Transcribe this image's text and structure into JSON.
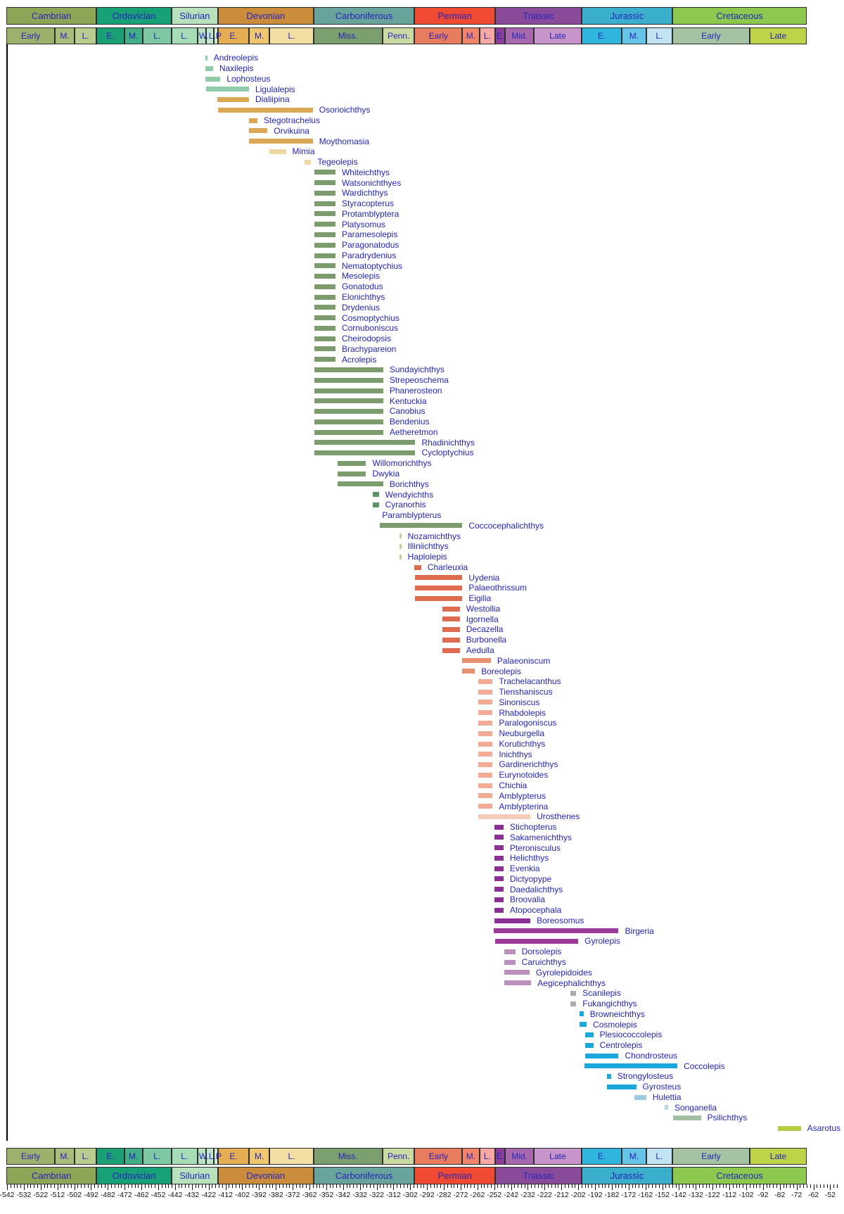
{
  "chart_data": {
    "type": "bar",
    "subtype": "taxon-temporal-range-chart",
    "description": "Temporal ranges of palaeonisciform fish genera against the geologic timescale, Cambrian to Cretaceous",
    "time_axis": {
      "left_ma": -542,
      "right_ma": -48,
      "tick_label_step": 10,
      "minor_tick_step": 2,
      "tick_labels": [
        "-542",
        "-532",
        "-522",
        "-512",
        "-502",
        "-492",
        "-482",
        "-472",
        "-462",
        "-452",
        "-442",
        "-432",
        "-422",
        "-412",
        "-402",
        "-392",
        "-382",
        "-372",
        "-362",
        "-352",
        "-342",
        "-332",
        "-322",
        "-312",
        "-302",
        "-292",
        "-282",
        "-272",
        "-262",
        "-252",
        "-242",
        "-232",
        "-222",
        "-212",
        "-202",
        "-192",
        "-182",
        "-172",
        "-162",
        "-152",
        "-142",
        "-132",
        "-122",
        "-112",
        "-102",
        "-92",
        "-82",
        "-72",
        "-62",
        "-52"
      ]
    },
    "palette": {
      "sil": "#8FCBA8",
      "dev": "#DBA855",
      "devL": "#EDD9A2",
      "carb": "#7C9C6E",
      "carbD": "#5E9466",
      "carbT": "#C8CC9D",
      "none": "transparent",
      "perm": "#DE6A50",
      "permM": "#E89070",
      "permL": "#F2AC96",
      "permLL": "#F7CBB9",
      "triE": "#8C3194",
      "tri": "#9C3A9C",
      "triM": "#BC8FBC",
      "triG": "#ACACAC",
      "jur": "#1BA7DB",
      "jurL": "#9FCBE0",
      "jurLL": "#B5D9E8",
      "cretE": "#A3BFA3",
      "cretL": "#B9CC45"
    },
    "periods": [
      {
        "label": "Cambrian",
        "start": 542,
        "end": 488.3,
        "color": "#8DA557",
        "epochs": [
          {
            "label": "Early",
            "start": 542,
            "end": 513,
            "color": "#9DB16D"
          },
          {
            "label": "M.",
            "start": 513,
            "end": 501.5,
            "color": "#A9BC7B"
          },
          {
            "label": "L.",
            "start": 501.5,
            "end": 488.3,
            "color": "#BACD8F"
          }
        ]
      },
      {
        "label": "Ordovician",
        "start": 488.3,
        "end": 443.7,
        "color": "#18A077",
        "epochs": [
          {
            "label": "E.",
            "start": 488.3,
            "end": 471.8,
            "color": "#1AA074"
          },
          {
            "label": "M.",
            "start": 471.8,
            "end": 460.9,
            "color": "#41AE85"
          },
          {
            "label": "L.",
            "start": 460.9,
            "end": 443.7,
            "color": "#7EC9A4"
          }
        ]
      },
      {
        "label": "Silurian",
        "start": 443.7,
        "end": 416,
        "color": "#B7E2BB",
        "epochs": [
          {
            "label": "L.",
            "start": 443.7,
            "end": 428.2,
            "color": "#A6DCB6"
          },
          {
            "label": "W.L.P",
            "start": 428.2,
            "end": 422.9,
            "color": "#B5E2C0",
            "overflow": true
          },
          {
            "label": "",
            "start": 422.9,
            "end": 418.7,
            "color": "#C3E7CA"
          },
          {
            "label": "",
            "start": 418.7,
            "end": 416,
            "color": "#CFEBD2"
          }
        ]
      },
      {
        "label": "Devonian",
        "start": 416,
        "end": 359.2,
        "color": "#CB8C3B",
        "epochs": [
          {
            "label": "E.",
            "start": 416,
            "end": 397.5,
            "color": "#E5AE53"
          },
          {
            "label": "M.",
            "start": 397.5,
            "end": 385.3,
            "color": "#EFC76F"
          },
          {
            "label": "L.",
            "start": 385.3,
            "end": 359.2,
            "color": "#F2DFA4"
          }
        ]
      },
      {
        "label": "Carboniferous",
        "start": 359.2,
        "end": 299,
        "color": "#68A49B",
        "epochs": [
          {
            "label": "Miss.",
            "start": 359.2,
            "end": 318.1,
            "color": "#7C9F6F"
          },
          {
            "label": "Penn.",
            "start": 318.1,
            "end": 299,
            "color": "#CBD9A2"
          }
        ]
      },
      {
        "label": "Permian",
        "start": 299,
        "end": 251,
        "color": "#F04A33",
        "epochs": [
          {
            "label": "Early",
            "start": 299,
            "end": 270.6,
            "color": "#E97B5E"
          },
          {
            "label": "M.",
            "start": 270.6,
            "end": 260.4,
            "color": "#F2836B"
          },
          {
            "label": "L.",
            "start": 260.4,
            "end": 251,
            "color": "#F7A8A2"
          }
        ]
      },
      {
        "label": "Triassic",
        "start": 251,
        "end": 199.6,
        "color": "#8A4A9A",
        "epochs": [
          {
            "label": "E.",
            "start": 251,
            "end": 245,
            "color": "#8B3E98"
          },
          {
            "label": "Mid.",
            "start": 245,
            "end": 228,
            "color": "#A868AE"
          },
          {
            "label": "Late",
            "start": 228,
            "end": 199.6,
            "color": "#C795C9"
          }
        ]
      },
      {
        "label": "Jurassic",
        "start": 199.6,
        "end": 145.5,
        "color": "#3BAECB",
        "epochs": [
          {
            "label": "E.",
            "start": 199.6,
            "end": 175.6,
            "color": "#2FB6DC"
          },
          {
            "label": "M.",
            "start": 175.6,
            "end": 161.2,
            "color": "#66C5E6"
          },
          {
            "label": "L.",
            "start": 161.2,
            "end": 145.5,
            "color": "#C2E4F2"
          }
        ]
      },
      {
        "label": "Cretaceous",
        "start": 145.5,
        "end": 65.5,
        "color": "#8DC94F",
        "epochs": [
          {
            "label": "Early",
            "start": 145.5,
            "end": 99.6,
            "color": "#A5C2A2"
          },
          {
            "label": "Late",
            "start": 99.6,
            "end": 65.5,
            "color": "#BFD348"
          }
        ]
      }
    ],
    "taxa": [
      {
        "name": "Andreolepis",
        "from_ma": 424,
        "to_ma": 422.8,
        "color_key": "sil"
      },
      {
        "name": "Naxilepis",
        "from_ma": 424,
        "to_ma": 419.4,
        "color_key": "sil"
      },
      {
        "name": "Lophosteus",
        "from_ma": 424,
        "to_ma": 415,
        "color_key": "sil"
      },
      {
        "name": "Ligulalepis",
        "from_ma": 423.5,
        "to_ma": 398,
        "color_key": "sil"
      },
      {
        "name": "Dialiipina",
        "from_ma": 417,
        "to_ma": 398,
        "color_key": "dev"
      },
      {
        "name": "Osorioichthys",
        "from_ma": 416.5,
        "to_ma": 360,
        "color_key": "dev"
      },
      {
        "name": "Stegotrachelus",
        "from_ma": 398,
        "to_ma": 393,
        "color_key": "dev"
      },
      {
        "name": "Orvikuina",
        "from_ma": 398,
        "to_ma": 387,
        "color_key": "dev"
      },
      {
        "name": "Moythomasia",
        "from_ma": 398,
        "to_ma": 360,
        "color_key": "dev"
      },
      {
        "name": "Mimia",
        "from_ma": 386,
        "to_ma": 376,
        "color_key": "devL"
      },
      {
        "name": "Tegeolepis",
        "from_ma": 365,
        "to_ma": 361,
        "color_key": "devL"
      },
      {
        "name": "Whiteichthys",
        "from_ma": 359.2,
        "to_ma": 346.5,
        "color_key": "carb"
      },
      {
        "name": "Watsonichthyes",
        "from_ma": 359.2,
        "to_ma": 346.5,
        "color_key": "carb"
      },
      {
        "name": "Wardichthys",
        "from_ma": 359.2,
        "to_ma": 346.5,
        "color_key": "carb"
      },
      {
        "name": "Styracopterus",
        "from_ma": 359.2,
        "to_ma": 346.5,
        "color_key": "carb"
      },
      {
        "name": "Protamblyptera",
        "from_ma": 359.2,
        "to_ma": 346.5,
        "color_key": "carb"
      },
      {
        "name": "Platysomus",
        "from_ma": 359.2,
        "to_ma": 346.5,
        "color_key": "carb"
      },
      {
        "name": "Paramesolepis",
        "from_ma": 359.2,
        "to_ma": 346.5,
        "color_key": "carb"
      },
      {
        "name": "Paragonatodus",
        "from_ma": 359.2,
        "to_ma": 346.5,
        "color_key": "carb"
      },
      {
        "name": "Paradrydenius",
        "from_ma": 359.2,
        "to_ma": 346.5,
        "color_key": "carb"
      },
      {
        "name": "Nematoptychius",
        "from_ma": 359.2,
        "to_ma": 346.5,
        "color_key": "carb"
      },
      {
        "name": "Mesolepis",
        "from_ma": 359.2,
        "to_ma": 346.5,
        "color_key": "carb"
      },
      {
        "name": "Gonatodus",
        "from_ma": 359.2,
        "to_ma": 346.5,
        "color_key": "carb"
      },
      {
        "name": "Elonichthys",
        "from_ma": 359.2,
        "to_ma": 346.5,
        "color_key": "carb"
      },
      {
        "name": "Drydenius",
        "from_ma": 359.2,
        "to_ma": 346.5,
        "color_key": "carb"
      },
      {
        "name": "Cosmoptychius",
        "from_ma": 359.2,
        "to_ma": 346.5,
        "color_key": "carb"
      },
      {
        "name": "Cornuboniscus",
        "from_ma": 359.2,
        "to_ma": 346.5,
        "color_key": "carb"
      },
      {
        "name": "Cheirodopsis",
        "from_ma": 359.2,
        "to_ma": 346.5,
        "color_key": "carb"
      },
      {
        "name": "Brachypareion",
        "from_ma": 359.2,
        "to_ma": 346.5,
        "color_key": "carb"
      },
      {
        "name": "Acrolepis",
        "from_ma": 359.2,
        "to_ma": 346.5,
        "color_key": "carb"
      },
      {
        "name": "Sundayichthys",
        "from_ma": 359.2,
        "to_ma": 318.1,
        "color_key": "carb"
      },
      {
        "name": "Strepeoschema",
        "from_ma": 359.2,
        "to_ma": 318.1,
        "color_key": "carb"
      },
      {
        "name": "Phanerosteon",
        "from_ma": 359.2,
        "to_ma": 318.1,
        "color_key": "carb"
      },
      {
        "name": "Kentuckia",
        "from_ma": 359.2,
        "to_ma": 318.1,
        "color_key": "carb"
      },
      {
        "name": "Canobius",
        "from_ma": 359.2,
        "to_ma": 318.1,
        "color_key": "carb"
      },
      {
        "name": "Bendenius",
        "from_ma": 359.2,
        "to_ma": 318.1,
        "color_key": "carb"
      },
      {
        "name": "Aetheretmon",
        "from_ma": 359.2,
        "to_ma": 318.1,
        "color_key": "carb"
      },
      {
        "name": "Rhadinichthys",
        "from_ma": 359.2,
        "to_ma": 299,
        "color_key": "carb"
      },
      {
        "name": "Cycloptychius",
        "from_ma": 359.2,
        "to_ma": 299,
        "color_key": "carb"
      },
      {
        "name": "Willomorichthys",
        "from_ma": 345.3,
        "to_ma": 328.3,
        "color_key": "carb"
      },
      {
        "name": "Dwykia",
        "from_ma": 345.3,
        "to_ma": 328.3,
        "color_key": "carb"
      },
      {
        "name": "Borichthys",
        "from_ma": 345.3,
        "to_ma": 318.1,
        "color_key": "carb"
      },
      {
        "name": "Wendyichths",
        "from_ma": 324.5,
        "to_ma": 320.7,
        "color_key": "carbD"
      },
      {
        "name": "Cyranorhis",
        "from_ma": 324.5,
        "to_ma": 320.7,
        "color_key": "carbD"
      },
      {
        "name": "Paramblypterus",
        "from_ma": 330,
        "to_ma": 322.5,
        "color_key": "none"
      },
      {
        "name": "Coccocephalichthys",
        "from_ma": 320,
        "to_ma": 271,
        "color_key": "carb"
      },
      {
        "name": "Nozamichthys",
        "from_ma": 308.5,
        "to_ma": 307.3,
        "color_key": "carbT"
      },
      {
        "name": "Illiniichthys",
        "from_ma": 308.5,
        "to_ma": 307.3,
        "color_key": "carbT"
      },
      {
        "name": "Haplolepis",
        "from_ma": 308.5,
        "to_ma": 307.3,
        "color_key": "carbT"
      },
      {
        "name": "Charleuxia",
        "from_ma": 299.7,
        "to_ma": 295.5,
        "color_key": "perm"
      },
      {
        "name": "Uydenia",
        "from_ma": 299,
        "to_ma": 271,
        "color_key": "perm"
      },
      {
        "name": "Palaeothrissum",
        "from_ma": 299,
        "to_ma": 271,
        "color_key": "perm"
      },
      {
        "name": "Eigilia",
        "from_ma": 299,
        "to_ma": 271,
        "color_key": "perm"
      },
      {
        "name": "Westollia",
        "from_ma": 283,
        "to_ma": 272.5,
        "color_key": "perm"
      },
      {
        "name": "Igornella",
        "from_ma": 283,
        "to_ma": 272.5,
        "color_key": "perm"
      },
      {
        "name": "Decazella",
        "from_ma": 283,
        "to_ma": 272.5,
        "color_key": "perm"
      },
      {
        "name": "Burbonella",
        "from_ma": 283,
        "to_ma": 272.5,
        "color_key": "perm"
      },
      {
        "name": "Aedulla",
        "from_ma": 283,
        "to_ma": 272.5,
        "color_key": "perm"
      },
      {
        "name": "Palaeoniscum",
        "from_ma": 271,
        "to_ma": 254,
        "color_key": "permM"
      },
      {
        "name": "Boreolepis",
        "from_ma": 271,
        "to_ma": 263.5,
        "color_key": "permM"
      },
      {
        "name": "Trachelacanthus",
        "from_ma": 261.5,
        "to_ma": 253,
        "color_key": "permL"
      },
      {
        "name": "Tienshaniscus",
        "from_ma": 261.5,
        "to_ma": 253,
        "color_key": "permL"
      },
      {
        "name": "Sinoniscus",
        "from_ma": 261.5,
        "to_ma": 253,
        "color_key": "permL"
      },
      {
        "name": "Rhabdolepis",
        "from_ma": 261.5,
        "to_ma": 253,
        "color_key": "permL"
      },
      {
        "name": "Paralogoniscus",
        "from_ma": 261.5,
        "to_ma": 253,
        "color_key": "permL"
      },
      {
        "name": "Neuburgella",
        "from_ma": 261.5,
        "to_ma": 253,
        "color_key": "permL"
      },
      {
        "name": "Korutichthys",
        "from_ma": 261.5,
        "to_ma": 253,
        "color_key": "permL"
      },
      {
        "name": "Inichthys",
        "from_ma": 261.5,
        "to_ma": 253,
        "color_key": "permL"
      },
      {
        "name": "Gardinerichthys",
        "from_ma": 261.5,
        "to_ma": 253,
        "color_key": "permL"
      },
      {
        "name": "Eurynotoides",
        "from_ma": 261.5,
        "to_ma": 253,
        "color_key": "permL"
      },
      {
        "name": "Chichia",
        "from_ma": 261.5,
        "to_ma": 253,
        "color_key": "permL"
      },
      {
        "name": "Amblypterus",
        "from_ma": 261.5,
        "to_ma": 253,
        "color_key": "permL"
      },
      {
        "name": "Amblypterina",
        "from_ma": 261.5,
        "to_ma": 253,
        "color_key": "permL"
      },
      {
        "name": "Urosthenes",
        "from_ma": 261.5,
        "to_ma": 230.5,
        "color_key": "permLL"
      },
      {
        "name": "Stichopterus",
        "from_ma": 252,
        "to_ma": 246.5,
        "color_key": "triE"
      },
      {
        "name": "Sakamenichthys",
        "from_ma": 252,
        "to_ma": 246.5,
        "color_key": "triE"
      },
      {
        "name": "Pteronisculus",
        "from_ma": 252,
        "to_ma": 246.5,
        "color_key": "triE"
      },
      {
        "name": "Helichthys",
        "from_ma": 252,
        "to_ma": 246.5,
        "color_key": "triE"
      },
      {
        "name": "Evenkia",
        "from_ma": 252,
        "to_ma": 246.5,
        "color_key": "triE"
      },
      {
        "name": "Dictyopype",
        "from_ma": 252,
        "to_ma": 246.5,
        "color_key": "triE"
      },
      {
        "name": "Daedalichthys",
        "from_ma": 252,
        "to_ma": 246.5,
        "color_key": "triE"
      },
      {
        "name": "Broovalia",
        "from_ma": 252,
        "to_ma": 246.5,
        "color_key": "triE"
      },
      {
        "name": "Atopocephala",
        "from_ma": 252,
        "to_ma": 246.5,
        "color_key": "triE"
      },
      {
        "name": "Boreosomus",
        "from_ma": 252,
        "to_ma": 230.5,
        "color_key": "triE"
      },
      {
        "name": "Birgeria",
        "from_ma": 252.5,
        "to_ma": 178,
        "color_key": "tri"
      },
      {
        "name": "Gyrolepis",
        "from_ma": 251.5,
        "to_ma": 202,
        "color_key": "tri"
      },
      {
        "name": "Dorsolepis",
        "from_ma": 246,
        "to_ma": 239.5,
        "color_key": "triM"
      },
      {
        "name": "Caruichthys",
        "from_ma": 246,
        "to_ma": 239.5,
        "color_key": "triM"
      },
      {
        "name": "Gyrolepidoides",
        "from_ma": 246,
        "to_ma": 231,
        "color_key": "triM"
      },
      {
        "name": "Aegicephalichthys",
        "from_ma": 246,
        "to_ma": 230,
        "color_key": "triM"
      },
      {
        "name": "Scanilepis",
        "from_ma": 206.5,
        "to_ma": 203.2,
        "color_key": "triG"
      },
      {
        "name": "Fukangichthys",
        "from_ma": 206.5,
        "to_ma": 203.2,
        "color_key": "triG"
      },
      {
        "name": "Browneichthys",
        "from_ma": 201.3,
        "to_ma": 198.8,
        "color_key": "jur"
      },
      {
        "name": "Cosmolepis",
        "from_ma": 201.3,
        "to_ma": 197,
        "color_key": "jur"
      },
      {
        "name": "Plesiococcolepis",
        "from_ma": 198,
        "to_ma": 193,
        "color_key": "jur"
      },
      {
        "name": "Centrolepis",
        "from_ma": 198,
        "to_ma": 193,
        "color_key": "jur"
      },
      {
        "name": "Chondrosteus",
        "from_ma": 198,
        "to_ma": 178,
        "color_key": "jur"
      },
      {
        "name": "Coccolepis",
        "from_ma": 198.5,
        "to_ma": 143,
        "color_key": "jur"
      },
      {
        "name": "Strongylosteus",
        "from_ma": 185,
        "to_ma": 182.5,
        "color_key": "jur"
      },
      {
        "name": "Gyrosteus",
        "from_ma": 185,
        "to_ma": 167.5,
        "color_key": "jur"
      },
      {
        "name": "Hulettia",
        "from_ma": 168.5,
        "to_ma": 161.5,
        "color_key": "jurL"
      },
      {
        "name": "Songanella",
        "from_ma": 150.5,
        "to_ma": 148.5,
        "color_key": "jurLL"
      },
      {
        "name": "Psilichthys",
        "from_ma": 145.5,
        "to_ma": 129,
        "color_key": "cretE"
      },
      {
        "name": "Asarotus",
        "from_ma": 83,
        "to_ma": 69.5,
        "color_key": "cretL"
      }
    ]
  }
}
